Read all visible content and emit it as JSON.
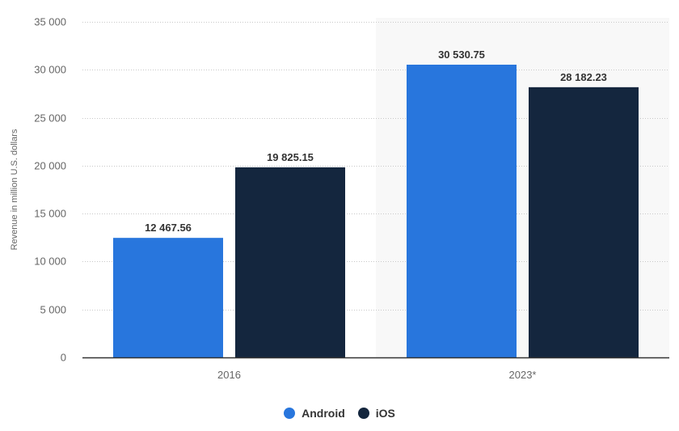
{
  "chart_data": {
    "type": "bar",
    "categories": [
      "2016",
      "2023*"
    ],
    "series": [
      {
        "name": "Android",
        "values": [
          12467.56,
          30530.75
        ],
        "labels": [
          "12 467.56",
          "30 530.75"
        ],
        "color": "#2876dd"
      },
      {
        "name": "iOS",
        "values": [
          19825.15,
          28182.23
        ],
        "labels": [
          "19 825.15",
          "28 182.23"
        ],
        "color": "#14263e"
      }
    ],
    "ylabel": "Revenue in million U.S. dollars",
    "xlabel": "",
    "ylim": [
      0,
      35000
    ],
    "yticks": [
      0,
      5000,
      10000,
      15000,
      20000,
      25000,
      30000,
      35000
    ],
    "ytick_labels": [
      "0",
      "5 000",
      "10 000",
      "15 000",
      "20 000",
      "25 000",
      "30 000",
      "35 000"
    ],
    "grid": true,
    "highlight_category": "2023*",
    "highlight_color": "#f8f8f8",
    "legend_position": "bottom"
  }
}
